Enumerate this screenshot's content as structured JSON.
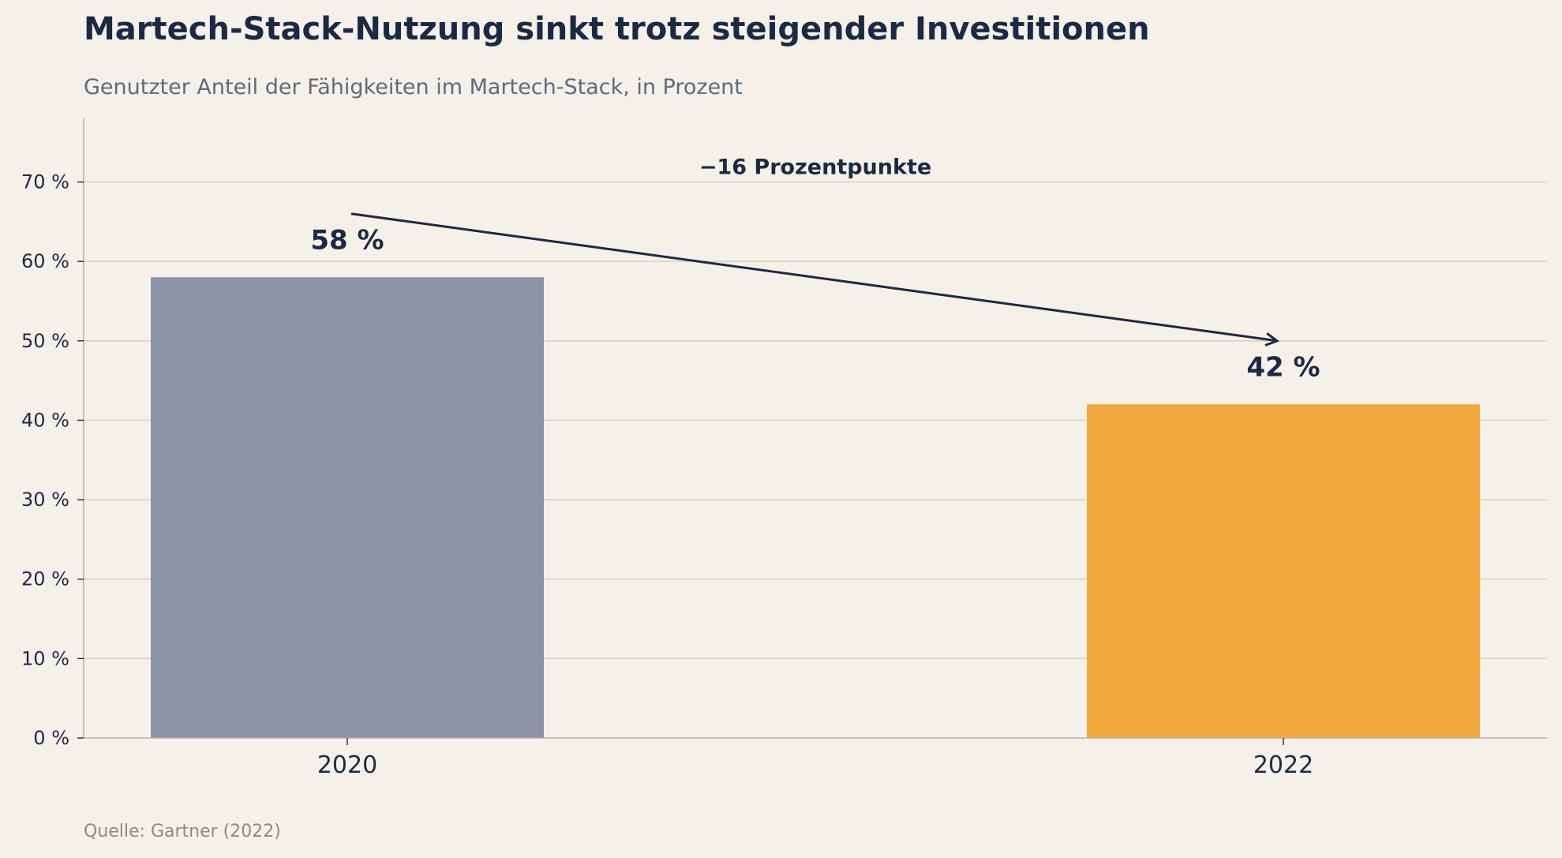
{
  "chart_data": {
    "type": "bar",
    "title": "Martech-Stack-Nutzung sinkt trotz steigender Investitionen",
    "subtitle": "Genutzter Anteil der Fähigkeiten im Martech-Stack, in Prozent",
    "categories": [
      "2020",
      "2022"
    ],
    "values": [
      58,
      42
    ],
    "data_labels": [
      "58 %",
      "42 %"
    ],
    "bar_colors": [
      "#8b93a6",
      "#f0a83c"
    ],
    "ylim": [
      0,
      78
    ],
    "yticks": [
      0,
      10,
      20,
      30,
      40,
      50,
      60,
      70
    ],
    "ytick_labels": [
      "0 %",
      "10 %",
      "20 %",
      "30 %",
      "40 %",
      "50 %",
      "60 %",
      "70 %"
    ],
    "grid": true,
    "xlabel": "",
    "ylabel": "",
    "annotation": {
      "text": "−16 Prozentpunkte",
      "arrow_from": {
        "category": "2020",
        "value": 66
      },
      "arrow_to": {
        "category": "2022",
        "value": 50
      }
    },
    "source": "Quelle: Gartner (2022)"
  },
  "colors": {
    "background": "#f5f0e8",
    "text": "#1b2a44",
    "grid": "#d9d4c0",
    "axis": "#b8b4aa"
  }
}
